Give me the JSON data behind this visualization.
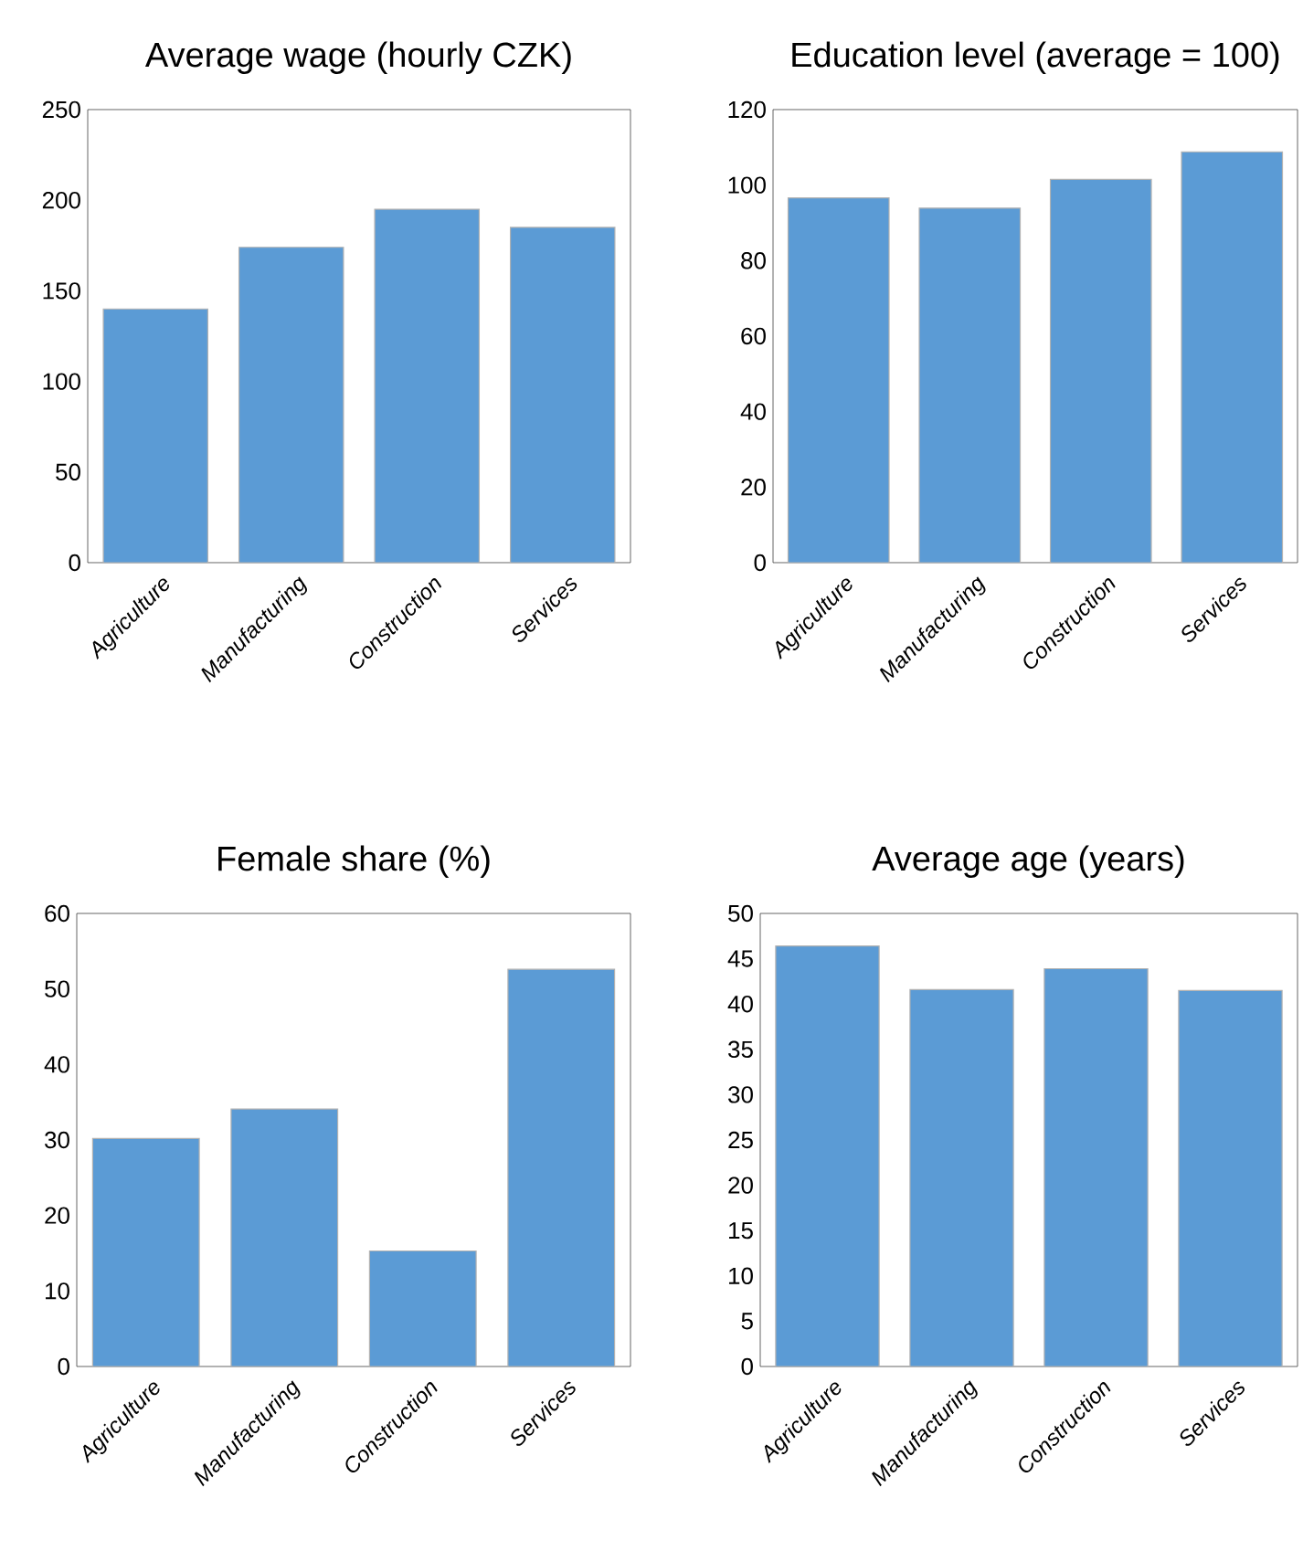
{
  "chart_data": [
    {
      "type": "bar",
      "title": "Average wage (hourly CZK)",
      "categories": [
        "Agriculture",
        "Manufacturing",
        "Construction",
        "Services"
      ],
      "values": [
        140,
        174,
        195,
        185
      ],
      "color": "#5b9bd5",
      "ylim": [
        0,
        250
      ],
      "yticks": [
        0,
        50,
        100,
        150,
        200,
        250
      ]
    },
    {
      "type": "bar",
      "title": "Education level (average = 100)",
      "categories": [
        "Agriculture",
        "Manufacturing",
        "Construction",
        "Services"
      ],
      "values": [
        96.6,
        93.9,
        101.5,
        108.8
      ],
      "color": "#5b9bd5",
      "ylim": [
        0,
        120
      ],
      "yticks": [
        0,
        20,
        40,
        60,
        80,
        100,
        120
      ]
    },
    {
      "type": "bar",
      "title": "Female share (%)",
      "categories": [
        "Agriculture",
        "Manufacturing",
        "Construction",
        "Services"
      ],
      "values": [
        30.2,
        34.1,
        15.3,
        52.6
      ],
      "color": "#5b9bd5",
      "ylim": [
        0,
        60
      ],
      "yticks": [
        0,
        10,
        20,
        30,
        40,
        50,
        60
      ]
    },
    {
      "type": "bar",
      "title": "Average age (years)",
      "categories": [
        "Agriculture",
        "Manufacturing",
        "Construction",
        "Services"
      ],
      "values": [
        46.4,
        41.6,
        43.9,
        41.5
      ],
      "color": "#5b9bd5",
      "ylim": [
        0,
        50
      ],
      "yticks": [
        0,
        5,
        10,
        15,
        20,
        25,
        30,
        35,
        40,
        45,
        50
      ]
    }
  ]
}
